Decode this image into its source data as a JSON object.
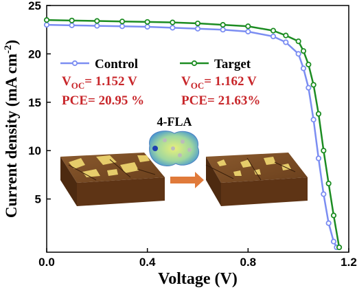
{
  "chart_data": {
    "type": "line",
    "xlabel": "Voltage (V)",
    "ylabel": {
      "text": "Current density (mA cm",
      "sup": "-2",
      "end": ")"
    },
    "xlim": [
      0,
      1.2
    ],
    "ylim": [
      -0.5,
      25
    ],
    "xticks": [
      {
        "value": 0,
        "label": "0.0"
      },
      0.4,
      0.8,
      1.2
    ],
    "yticks": [
      5,
      10,
      15,
      20,
      25
    ],
    "series": [
      {
        "name": "Control",
        "color": "#7b8df2",
        "x": [
          0,
          0.1,
          0.2,
          0.3,
          0.4,
          0.5,
          0.6,
          0.7,
          0.8,
          0.9,
          0.95,
          1.0,
          1.02,
          1.04,
          1.06,
          1.08,
          1.1,
          1.12,
          1.14,
          1.152
        ],
        "values": [
          23.0,
          22.95,
          22.9,
          22.85,
          22.8,
          22.7,
          22.6,
          22.5,
          22.3,
          21.8,
          21.2,
          20.0,
          18.5,
          16.5,
          13.2,
          9.2,
          5.5,
          2.5,
          0.6,
          0
        ]
      },
      {
        "name": "Target",
        "color": "#1c8c22",
        "x": [
          0,
          0.1,
          0.2,
          0.3,
          0.4,
          0.5,
          0.6,
          0.7,
          0.8,
          0.9,
          0.95,
          1.0,
          1.02,
          1.04,
          1.06,
          1.08,
          1.1,
          1.12,
          1.14,
          1.162
        ],
        "values": [
          23.5,
          23.45,
          23.4,
          23.35,
          23.3,
          23.25,
          23.15,
          23.0,
          22.85,
          22.4,
          21.9,
          21.3,
          20.3,
          18.9,
          16.8,
          13.8,
          10.0,
          6.6,
          3.3,
          0
        ]
      }
    ],
    "annotations": [
      {
        "voc": {
          "main": "V",
          "sub": "OC",
          "text": "= 1.152 V"
        },
        "pce": "PCE= 20.95 %"
      },
      {
        "voc": {
          "main": "V",
          "sub": "OC",
          "text": "= 1.162 V"
        },
        "pce": "PCE= 21.63%"
      }
    ],
    "annotation_color": "#c8262a",
    "inset_label": "4-FLA"
  }
}
